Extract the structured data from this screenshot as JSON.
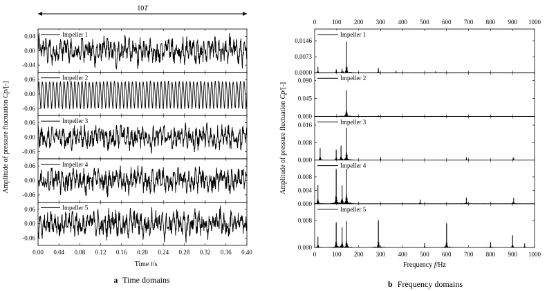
{
  "figure": {
    "panel_a_caption": {
      "letter": "a",
      "text": "Time domains"
    },
    "panel_b_caption": {
      "letter": "b",
      "text": "Frequency domains"
    }
  },
  "chart_data": [
    {
      "type": "line",
      "panel": "a",
      "xlabel_parts": [
        "Time ",
        "t",
        "/s"
      ],
      "ylabel_parts": [
        "Amplitude of pressure fluctuation ",
        "Cp",
        "/[-]"
      ],
      "period_label_parts": [
        "10",
        "T"
      ],
      "xlim": [
        0.0,
        0.4
      ],
      "x_ticks": [
        "0.00",
        "0.04",
        "0.08",
        "0.12",
        "0.16",
        "0.20",
        "0.24",
        "0.28",
        "0.32",
        "0.36",
        "0.40"
      ],
      "period_count": 10,
      "series": [
        {
          "name": "Impeller 1",
          "ylim": [
            -0.06,
            0.06
          ],
          "y_ticks": [
            0.04,
            0.0,
            -0.04
          ],
          "y_tick_labels": [
            "0.04",
            "0.00",
            "-0.04"
          ],
          "amplitude": 0.038,
          "dominant_frequency_hz": 145
        },
        {
          "name": "Impeller 2",
          "ylim": [
            -0.09,
            0.09
          ],
          "y_ticks": [
            0.06,
            0.0,
            -0.06
          ],
          "y_tick_labels": [
            "0.06",
            "0.00",
            "-0.06"
          ],
          "amplitude": 0.065,
          "dominant_frequency_hz": 145
        },
        {
          "name": "Impeller 3",
          "ylim": [
            -0.09,
            0.09
          ],
          "y_ticks": [
            0.06,
            0.0,
            -0.06
          ],
          "y_tick_labels": [
            "0.06",
            "0.00",
            "-0.06"
          ],
          "amplitude": 0.05,
          "dominant_frequency_hz": 145
        },
        {
          "name": "Impeller 4",
          "ylim": [
            -0.09,
            0.09
          ],
          "y_ticks": [
            0.06,
            0.0,
            -0.06
          ],
          "y_tick_labels": [
            "0.06",
            "0.00",
            "-0.06"
          ],
          "amplitude": 0.052,
          "dominant_frequency_hz": 145
        },
        {
          "name": "Impeller 5",
          "ylim": [
            -0.09,
            0.09
          ],
          "y_ticks": [
            0.06,
            0.0,
            -0.06
          ],
          "y_tick_labels": [
            "0.06",
            "0.00",
            "-0.06"
          ],
          "amplitude": 0.055,
          "dominant_frequency_hz": 145
        }
      ]
    },
    {
      "type": "line",
      "panel": "b",
      "xlabel_parts": [
        "Frequency  ",
        "f",
        "/Hz"
      ],
      "ylabel_parts": [
        "Amplitude of pressure fluctuation ",
        "Cp",
        "/[-]"
      ],
      "xlim": [
        0,
        1000
      ],
      "x_ticks": [
        "0",
        "100",
        "200",
        "300",
        "400",
        "500",
        "600",
        "700",
        "800",
        "900",
        "1000"
      ],
      "series": [
        {
          "name": "Impeller 1",
          "ylim": [
            0,
            0.02
          ],
          "y_ticks": [
            0.0146,
            0.0073,
            0.0
          ],
          "y_tick_labels": [
            "0.0146",
            "0.0073",
            "0.0000"
          ],
          "peaks": [
            [
              15,
              0.0027
            ],
            [
              98,
              0.0015
            ],
            [
              125,
              0.0018
            ],
            [
              145,
              0.0142
            ],
            [
              290,
              0.002
            ],
            [
              370,
              0.0008
            ],
            [
              550,
              0.0006
            ]
          ]
        },
        {
          "name": "Impeller 2",
          "ylim": [
            0,
            0.11
          ],
          "y_ticks": [
            0.09,
            0.045,
            0.0
          ],
          "y_tick_labels": [
            "0.090",
            "0.045",
            "0.000"
          ],
          "peaks": [
            [
              145,
              0.066
            ],
            [
              290,
              0.0025
            ]
          ]
        },
        {
          "name": "Impeller 3",
          "ylim": [
            0,
            0.02
          ],
          "y_ticks": [
            0.016,
            0.008,
            0.0
          ],
          "y_tick_labels": [
            "0.016",
            "0.008",
            "0.000"
          ],
          "peaks": [
            [
              25,
              0.0055
            ],
            [
              98,
              0.0045
            ],
            [
              120,
              0.0062
            ],
            [
              145,
              0.0148
            ],
            [
              300,
              0.0012
            ],
            [
              690,
              0.0012
            ],
            [
              905,
              0.0013
            ]
          ]
        },
        {
          "name": "Impeller 4",
          "ylim": [
            0,
            0.013
          ],
          "y_ticks": [
            0.008,
            0.004,
            0.0
          ],
          "y_tick_labels": [
            "0.008",
            "0.004",
            "0.000"
          ],
          "peaks": [
            [
              15,
              0.0055
            ],
            [
              98,
              0.0105
            ],
            [
              125,
              0.0055
            ],
            [
              145,
              0.0108
            ],
            [
              480,
              0.0012
            ],
            [
              690,
              0.0018
            ],
            [
              905,
              0.0018
            ]
          ]
        },
        {
          "name": "Impeller 5",
          "ylim": [
            0,
            0.013
          ],
          "y_ticks": [
            0.008,
            0.0
          ],
          "y_tick_labels": [
            "0.008",
            "0.000"
          ],
          "peaks": [
            [
              15,
              0.0032
            ],
            [
              98,
              0.0073
            ],
            [
              125,
              0.006
            ],
            [
              145,
              0.0078
            ],
            [
              290,
              0.0078
            ],
            [
              500,
              0.0012
            ],
            [
              600,
              0.007
            ],
            [
              800,
              0.0015
            ],
            [
              900,
              0.0035
            ],
            [
              955,
              0.0012
            ]
          ]
        }
      ]
    }
  ]
}
